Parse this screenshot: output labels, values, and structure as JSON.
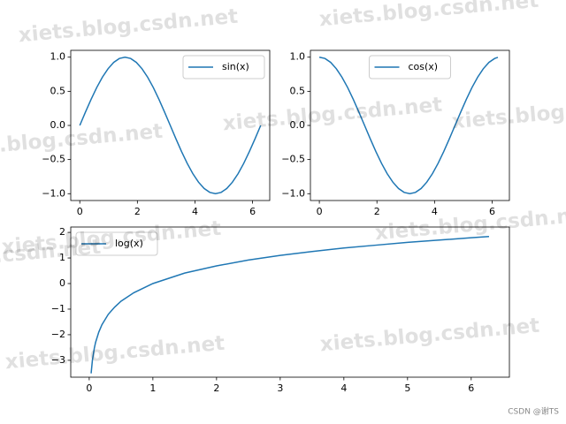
{
  "watermark": "xiets.blog.csdn.net",
  "credit": "CSDN @谢TS",
  "chart_data": [
    {
      "type": "line",
      "legend": "upper right",
      "x": [
        0,
        0.196,
        0.393,
        0.589,
        0.785,
        0.982,
        1.178,
        1.374,
        1.571,
        1.767,
        1.963,
        2.16,
        2.356,
        2.553,
        2.749,
        2.945,
        3.142,
        3.338,
        3.534,
        3.731,
        3.927,
        4.123,
        4.32,
        4.516,
        4.712,
        4.909,
        5.105,
        5.301,
        5.498,
        5.694,
        5.89,
        6.087,
        6.283
      ],
      "series": [
        {
          "name": "sin(x)",
          "color": "#1f77b4",
          "values": [
            0,
            0.195,
            0.383,
            0.556,
            0.707,
            0.831,
            0.924,
            0.981,
            1,
            0.981,
            0.924,
            0.831,
            0.707,
            0.556,
            0.383,
            0.195,
            0,
            -0.195,
            -0.383,
            -0.556,
            -0.707,
            -0.831,
            -0.924,
            -0.981,
            -1,
            -0.981,
            -0.924,
            -0.831,
            -0.707,
            -0.556,
            -0.383,
            -0.195,
            0
          ]
        }
      ],
      "xlim": [
        -0.314,
        6.597
      ],
      "xticks": [
        0,
        2,
        4,
        6
      ],
      "ylim": [
        -1.1,
        1.1
      ],
      "yticks": [
        {
          "value": -1,
          "label": "−1.0"
        },
        {
          "value": -0.5,
          "label": "−0.5"
        },
        {
          "value": 0,
          "label": "0.0"
        },
        {
          "value": 0.5,
          "label": "0.5"
        },
        {
          "value": 1,
          "label": "1.0"
        }
      ]
    },
    {
      "type": "line",
      "legend": "upper center",
      "x": [
        0,
        0.196,
        0.393,
        0.589,
        0.785,
        0.982,
        1.178,
        1.374,
        1.571,
        1.767,
        1.963,
        2.16,
        2.356,
        2.553,
        2.749,
        2.945,
        3.142,
        3.338,
        3.534,
        3.731,
        3.927,
        4.123,
        4.32,
        4.516,
        4.712,
        4.909,
        5.105,
        5.301,
        5.498,
        5.694,
        5.89,
        6.087,
        6.2
      ],
      "series": [
        {
          "name": "cos(x)",
          "color": "#1f77b4",
          "values": [
            1,
            0.981,
            0.924,
            0.831,
            0.707,
            0.556,
            0.383,
            0.195,
            0,
            -0.195,
            -0.383,
            -0.556,
            -0.707,
            -0.831,
            -0.924,
            -0.981,
            -1,
            -0.981,
            -0.924,
            -0.831,
            -0.707,
            -0.556,
            -0.383,
            -0.195,
            0,
            0.195,
            0.383,
            0.556,
            0.707,
            0.831,
            0.924,
            0.981,
            0.997
          ]
        }
      ],
      "xlim": [
        -0.31,
        6.6
      ],
      "xticks": [
        0,
        2,
        4,
        6
      ],
      "ylim": [
        -1.1,
        1.1
      ],
      "yticks": [
        {
          "value": -1,
          "label": "−1.0"
        },
        {
          "value": -0.5,
          "label": "−0.5"
        },
        {
          "value": 0,
          "label": "0.0"
        },
        {
          "value": 0.5,
          "label": "0.5"
        },
        {
          "value": 1,
          "label": "1.0"
        }
      ]
    },
    {
      "type": "line",
      "legend": "upper left",
      "x": [
        0.03,
        0.05,
        0.08,
        0.1,
        0.15,
        0.2,
        0.3,
        0.4,
        0.5,
        0.7,
        1,
        1.5,
        2,
        2.5,
        3,
        3.5,
        4,
        4.5,
        5,
        5.5,
        6,
        6.28
      ],
      "series": [
        {
          "name": "log(x)",
          "color": "#1f77b4",
          "values": [
            -3.51,
            -3.0,
            -2.53,
            -2.3,
            -1.9,
            -1.61,
            -1.2,
            -0.92,
            -0.69,
            -0.36,
            0,
            0.41,
            0.69,
            0.92,
            1.1,
            1.25,
            1.39,
            1.5,
            1.61,
            1.7,
            1.79,
            1.84
          ]
        }
      ],
      "xlim": [
        -0.29,
        6.6
      ],
      "xticks": [
        0,
        1,
        2,
        3,
        4,
        5,
        6
      ],
      "ylim": [
        -3.66,
        2.21
      ],
      "yticks": [
        {
          "value": -3,
          "label": "−3"
        },
        {
          "value": -2,
          "label": "−2"
        },
        {
          "value": -1,
          "label": "−1"
        },
        0,
        1,
        2
      ]
    }
  ]
}
